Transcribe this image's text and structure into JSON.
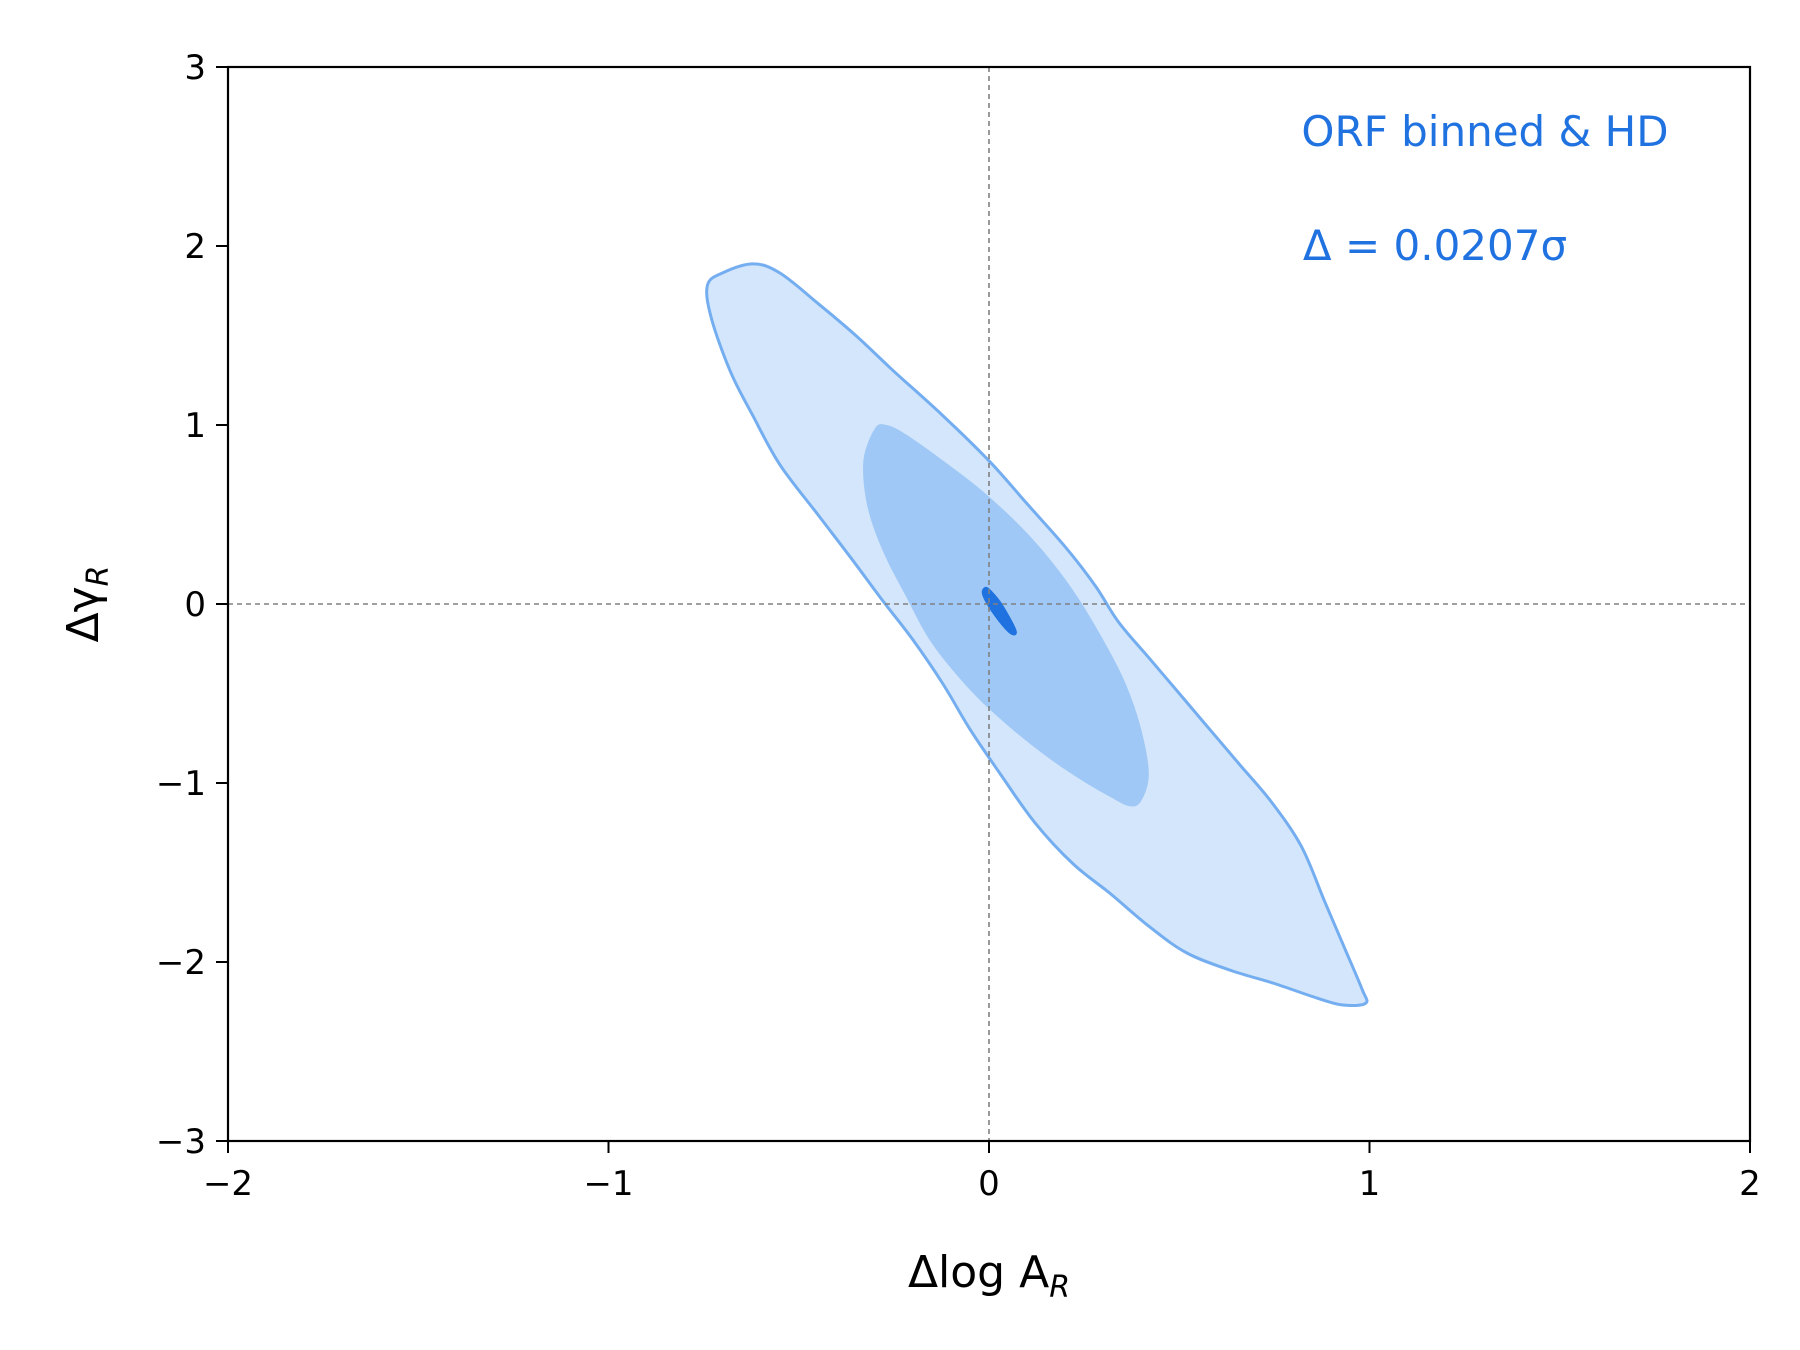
{
  "chart_data": {
    "type": "contour",
    "xlabel": "Δlog A",
    "xlabel_sub": "R",
    "ylabel": "Δγ",
    "ylabel_sub": "R",
    "xlim": [
      -2,
      2
    ],
    "ylim": [
      -3,
      3
    ],
    "xticks": [
      -2,
      -1,
      0,
      1,
      2
    ],
    "xtick_labels": [
      "−2",
      "−1",
      "0",
      "1",
      "2"
    ],
    "yticks": [
      -3,
      -2,
      -1,
      0,
      1,
      2,
      3
    ],
    "ytick_labels": [
      "−3",
      "−2",
      "−1",
      "0",
      "1",
      "2",
      "3"
    ],
    "grid": false,
    "reference_lines": {
      "x": 0,
      "y": 0,
      "style": "dashed",
      "color": "#808080"
    },
    "annotations": [
      "ORF binned & HD",
      "Δ = 0.0207σ"
    ],
    "colors": {
      "outer_fill": "#d3e6fb",
      "outer_edge": "#74aef0",
      "inner_fill": "#9fc8f6",
      "center": "#1f72e0",
      "annotation": "#1f72e0"
    },
    "contours": [
      {
        "level": "outer",
        "points": [
          [
            -0.7,
            1.85
          ],
          [
            -0.62,
            1.9
          ],
          [
            -0.55,
            1.85
          ],
          [
            -0.45,
            1.68
          ],
          [
            -0.35,
            1.5
          ],
          [
            -0.25,
            1.3
          ],
          [
            -0.12,
            1.05
          ],
          [
            0.0,
            0.8
          ],
          [
            0.1,
            0.56
          ],
          [
            0.2,
            0.32
          ],
          [
            0.28,
            0.1
          ],
          [
            0.34,
            -0.1
          ],
          [
            0.42,
            -0.3
          ],
          [
            0.5,
            -0.5
          ],
          [
            0.58,
            -0.7
          ],
          [
            0.66,
            -0.9
          ],
          [
            0.74,
            -1.1
          ],
          [
            0.82,
            -1.35
          ],
          [
            0.88,
            -1.65
          ],
          [
            0.93,
            -1.9
          ],
          [
            0.98,
            -2.15
          ],
          [
            0.99,
            -2.23
          ],
          [
            0.93,
            -2.24
          ],
          [
            0.86,
            -2.2
          ],
          [
            0.75,
            -2.12
          ],
          [
            0.64,
            -2.05
          ],
          [
            0.52,
            -1.95
          ],
          [
            0.42,
            -1.8
          ],
          [
            0.32,
            -1.62
          ],
          [
            0.22,
            -1.45
          ],
          [
            0.12,
            -1.22
          ],
          [
            0.03,
            -0.95
          ],
          [
            -0.05,
            -0.7
          ],
          [
            -0.12,
            -0.45
          ],
          [
            -0.2,
            -0.2
          ],
          [
            -0.28,
            0.02
          ],
          [
            -0.36,
            0.25
          ],
          [
            -0.45,
            0.5
          ],
          [
            -0.55,
            0.78
          ],
          [
            -0.62,
            1.05
          ],
          [
            -0.68,
            1.3
          ],
          [
            -0.73,
            1.6
          ],
          [
            -0.74,
            1.78
          ]
        ]
      },
      {
        "level": "inner",
        "points": [
          [
            -0.3,
            0.98
          ],
          [
            -0.27,
            1.0
          ],
          [
            -0.22,
            0.95
          ],
          [
            -0.12,
            0.8
          ],
          [
            0.0,
            0.6
          ],
          [
            0.12,
            0.35
          ],
          [
            0.22,
            0.08
          ],
          [
            0.3,
            -0.2
          ],
          [
            0.36,
            -0.45
          ],
          [
            0.4,
            -0.7
          ],
          [
            0.42,
            -0.95
          ],
          [
            0.4,
            -1.1
          ],
          [
            0.37,
            -1.13
          ],
          [
            0.32,
            -1.08
          ],
          [
            0.24,
            -0.98
          ],
          [
            0.15,
            -0.85
          ],
          [
            0.05,
            -0.68
          ],
          [
            -0.05,
            -0.48
          ],
          [
            -0.15,
            -0.22
          ],
          [
            -0.22,
            0.05
          ],
          [
            -0.28,
            0.3
          ],
          [
            -0.32,
            0.55
          ],
          [
            -0.33,
            0.8
          ]
        ]
      },
      {
        "level": "center",
        "points": [
          [
            -0.01,
            0.09
          ],
          [
            0.005,
            0.07
          ],
          [
            0.035,
            -0.01
          ],
          [
            0.07,
            -0.15
          ],
          [
            0.055,
            -0.16
          ],
          [
            0.015,
            -0.06
          ],
          [
            -0.015,
            0.05
          ]
        ]
      }
    ]
  }
}
